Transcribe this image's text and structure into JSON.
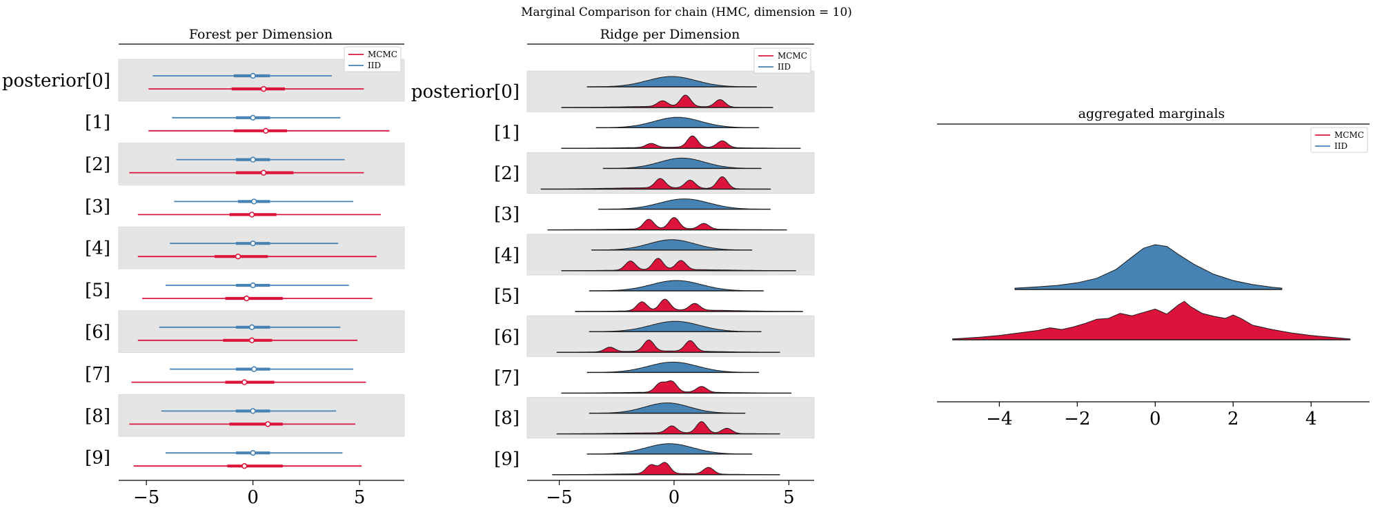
{
  "suptitle": "Marginal Comparison for chain (HMC, dimension = 10)",
  "colors": {
    "mcmc": "#dc143c",
    "iid": "#4682b4",
    "band": "#e5e5e5",
    "axis": "#000000"
  },
  "chart_data": [
    {
      "type": "forest",
      "title": "Forest per Dimension",
      "row_labels": [
        "posterior[0]",
        "[1]",
        "[2]",
        "[3]",
        "[4]",
        "[5]",
        "[6]",
        "[7]",
        "[8]",
        "[9]"
      ],
      "xlim": [
        -6.3,
        7.1
      ],
      "xticks": [
        -5,
        0,
        5
      ],
      "xticklabels": [
        "−5",
        "0",
        "5"
      ],
      "legend": {
        "placement": "top-right",
        "entries": [
          "MCMC",
          "IID"
        ]
      },
      "series": [
        {
          "name": "IID",
          "color_key": "iid",
          "rows": [
            {
              "hdi94": [
                -4.7,
                3.7
              ],
              "hdi50": [
                -0.9,
                0.8
              ],
              "mean": 0.0
            },
            {
              "hdi94": [
                -3.8,
                4.1
              ],
              "hdi50": [
                -0.8,
                0.8
              ],
              "mean": 0.0
            },
            {
              "hdi94": [
                -3.6,
                4.3
              ],
              "hdi50": [
                -0.8,
                0.8
              ],
              "mean": 0.0
            },
            {
              "hdi94": [
                -3.7,
                4.7
              ],
              "hdi50": [
                -0.7,
                0.8
              ],
              "mean": 0.05
            },
            {
              "hdi94": [
                -3.9,
                4.0
              ],
              "hdi50": [
                -0.8,
                0.8
              ],
              "mean": 0.0
            },
            {
              "hdi94": [
                -4.1,
                4.5
              ],
              "hdi50": [
                -0.8,
                0.8
              ],
              "mean": 0.0
            },
            {
              "hdi94": [
                -4.4,
                4.1
              ],
              "hdi50": [
                -0.8,
                0.8
              ],
              "mean": -0.05
            },
            {
              "hdi94": [
                -3.9,
                4.7
              ],
              "hdi50": [
                -0.8,
                0.8
              ],
              "mean": 0.05
            },
            {
              "hdi94": [
                -4.3,
                3.9
              ],
              "hdi50": [
                -0.8,
                0.8
              ],
              "mean": 0.0
            },
            {
              "hdi94": [
                -4.1,
                4.2
              ],
              "hdi50": [
                -0.8,
                0.8
              ],
              "mean": 0.0
            }
          ]
        },
        {
          "name": "MCMC",
          "color_key": "mcmc",
          "rows": [
            {
              "hdi94": [
                -4.9,
                5.2
              ],
              "hdi50": [
                -1.0,
                1.5
              ],
              "mean": 0.5
            },
            {
              "hdi94": [
                -4.9,
                6.4
              ],
              "hdi50": [
                -0.9,
                1.6
              ],
              "mean": 0.6
            },
            {
              "hdi94": [
                -5.8,
                5.2
              ],
              "hdi50": [
                -0.8,
                1.9
              ],
              "mean": 0.5
            },
            {
              "hdi94": [
                -5.4,
                6.0
              ],
              "hdi50": [
                -1.1,
                1.1
              ],
              "mean": -0.05
            },
            {
              "hdi94": [
                -5.4,
                5.8
              ],
              "hdi50": [
                -1.8,
                0.7
              ],
              "mean": -0.7
            },
            {
              "hdi94": [
                -5.2,
                5.6
              ],
              "hdi50": [
                -1.3,
                1.4
              ],
              "mean": -0.3
            },
            {
              "hdi94": [
                -5.4,
                4.9
              ],
              "hdi50": [
                -1.4,
                0.9
              ],
              "mean": -0.05
            },
            {
              "hdi94": [
                -5.7,
                5.3
              ],
              "hdi50": [
                -1.3,
                1.0
              ],
              "mean": -0.4
            },
            {
              "hdi94": [
                -5.8,
                4.8
              ],
              "hdi50": [
                -1.1,
                1.4
              ],
              "mean": 0.7
            },
            {
              "hdi94": [
                -5.6,
                5.1
              ],
              "hdi50": [
                -1.2,
                1.4
              ],
              "mean": -0.4
            }
          ]
        }
      ]
    },
    {
      "type": "ridge",
      "title": "Ridge per Dimension",
      "row_labels": [
        "posterior[0]",
        "[1]",
        "[2]",
        "[3]",
        "[4]",
        "[5]",
        "[6]",
        "[7]",
        "[8]",
        "[9]"
      ],
      "xlim": [
        -6.4,
        6.1
      ],
      "xticks": [
        -5,
        0,
        5
      ],
      "xticklabels": [
        "−5",
        "0",
        "5"
      ],
      "legend": {
        "placement": "top-right",
        "entries": [
          "MCMC",
          "IID"
        ]
      },
      "series": [
        {
          "name": "IID",
          "color_key": "iid",
          "rows": [
            {
              "range": [
                -3.8,
                3.6
              ],
              "peaks": []
            },
            {
              "range": [
                -3.4,
                3.7
              ],
              "peaks": []
            },
            {
              "range": [
                -3.1,
                3.8
              ],
              "peaks": []
            },
            {
              "range": [
                -3.3,
                4.2
              ],
              "peaks": []
            },
            {
              "range": [
                -3.6,
                3.4
              ],
              "peaks": []
            },
            {
              "range": [
                -3.7,
                3.9
              ],
              "peaks": []
            },
            {
              "range": [
                -3.7,
                3.8
              ],
              "peaks": []
            },
            {
              "range": [
                -3.8,
                3.7
              ],
              "peaks": []
            },
            {
              "range": [
                -3.7,
                3.1
              ],
              "peaks": []
            },
            {
              "range": [
                -3.8,
                3.4
              ],
              "peaks": []
            }
          ]
        },
        {
          "name": "MCMC",
          "color_key": "mcmc",
          "rows": [
            {
              "range": [
                -4.9,
                4.3
              ],
              "peaks": [
                [
                  -0.5,
                  0.5
                ],
                [
                  0.5,
                  1.0
                ],
                [
                  2.0,
                  0.65
                ]
              ]
            },
            {
              "range": [
                -4.9,
                5.5
              ],
              "peaks": [
                [
                  -1.0,
                  0.35
                ],
                [
                  0.8,
                  1.0
                ],
                [
                  2.1,
                  0.6
                ]
              ]
            },
            {
              "range": [
                -5.8,
                4.2
              ],
              "peaks": [
                [
                  -0.6,
                  0.7
                ],
                [
                  0.7,
                  0.6
                ],
                [
                  2.1,
                  0.9
                ]
              ]
            },
            {
              "range": [
                -5.5,
                4.9
              ],
              "peaks": [
                [
                  -1.1,
                  0.85
                ],
                [
                  0.0,
                  1.0
                ],
                [
                  1.3,
                  0.5
                ]
              ]
            },
            {
              "range": [
                -4.9,
                5.3
              ],
              "peaks": [
                [
                  -1.9,
                  0.8
                ],
                [
                  -0.7,
                  1.0
                ],
                [
                  0.3,
                  0.8
                ]
              ]
            },
            {
              "range": [
                -4.3,
                5.6
              ],
              "peaks": [
                [
                  -1.4,
                  0.6
                ],
                [
                  -0.4,
                  0.75
                ],
                [
                  0.9,
                  0.45
                ]
              ]
            },
            {
              "range": [
                -5.1,
                4.6
              ],
              "peaks": [
                [
                  -2.8,
                  0.35
                ],
                [
                  -1.1,
                  0.85
                ],
                [
                  0.7,
                  0.8
                ]
              ]
            },
            {
              "range": [
                -4.9,
                5.1
              ],
              "peaks": [
                [
                  -0.6,
                  0.85
                ],
                [
                  -0.1,
                  1.0
                ],
                [
                  1.2,
                  0.55
                ]
              ]
            },
            {
              "range": [
                -5.1,
                4.6
              ],
              "peaks": [
                [
                  -0.1,
                  0.6
                ],
                [
                  1.2,
                  1.0
                ],
                [
                  2.3,
                  0.45
                ]
              ]
            },
            {
              "range": [
                -5.3,
                4.6
              ],
              "peaks": [
                [
                  -1.0,
                  0.8
                ],
                [
                  -0.4,
                  1.0
                ],
                [
                  1.5,
                  0.6
                ]
              ]
            }
          ]
        }
      ]
    },
    {
      "type": "ridge",
      "title": "aggregated marginals",
      "xlim": [
        -5.6,
        5.5
      ],
      "xticks": [
        -4,
        -2,
        0,
        2,
        4
      ],
      "xticklabels": [
        "−4",
        "−2",
        "0",
        "2",
        "4"
      ],
      "legend": {
        "placement": "top-right",
        "entries": [
          "MCMC",
          "IID"
        ]
      },
      "series": [
        {
          "name": "IID",
          "color_key": "iid",
          "x": [
            -3.6,
            -3.0,
            -2.5,
            -2.0,
            -1.5,
            -1.0,
            -0.6,
            -0.3,
            0.0,
            0.3,
            0.6,
            1.0,
            1.5,
            2.0,
            2.5,
            3.0,
            3.25
          ],
          "y": [
            0.03,
            0.06,
            0.09,
            0.15,
            0.25,
            0.45,
            0.72,
            0.92,
            1.0,
            0.96,
            0.78,
            0.56,
            0.34,
            0.2,
            0.11,
            0.05,
            0.03
          ]
        },
        {
          "name": "MCMC",
          "color_key": "mcmc",
          "x": [
            -5.2,
            -4.5,
            -4.0,
            -3.5,
            -3.0,
            -2.7,
            -2.4,
            -2.1,
            -1.8,
            -1.5,
            -1.2,
            -0.9,
            -0.6,
            -0.3,
            0.0,
            0.3,
            0.6,
            0.75,
            0.9,
            1.2,
            1.5,
            1.8,
            2.0,
            2.2,
            2.5,
            3.0,
            3.5,
            4.0,
            4.5,
            5.0
          ],
          "y": [
            0.02,
            0.06,
            0.1,
            0.16,
            0.22,
            0.28,
            0.24,
            0.3,
            0.38,
            0.48,
            0.5,
            0.62,
            0.56,
            0.64,
            0.72,
            0.6,
            0.82,
            0.9,
            0.78,
            0.62,
            0.55,
            0.5,
            0.58,
            0.5,
            0.34,
            0.24,
            0.16,
            0.1,
            0.06,
            0.02
          ]
        }
      ]
    }
  ]
}
